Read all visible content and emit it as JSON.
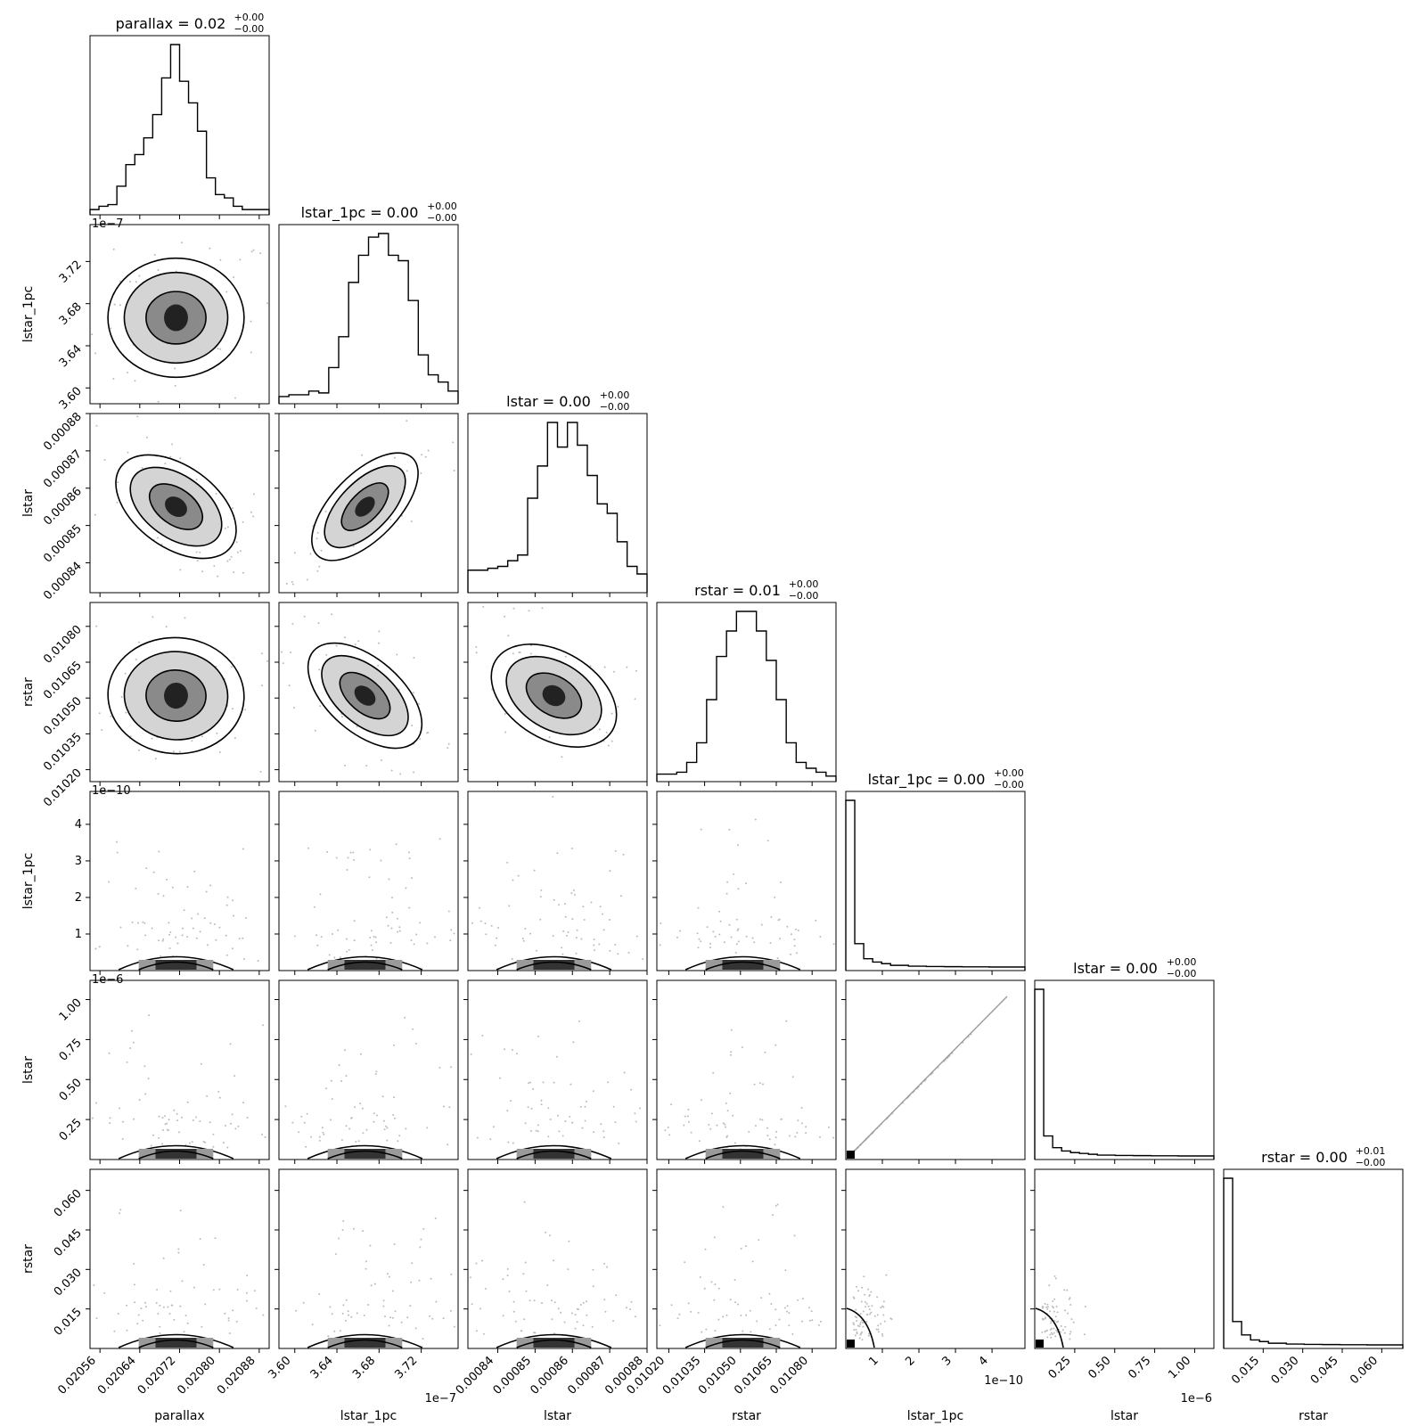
{
  "chart_data": {
    "type": "corner",
    "parameters": [
      "parallax",
      "lstar_1pc",
      "lstar",
      "rstar",
      "lstar_1pc",
      "lstar",
      "rstar"
    ],
    "titles": [
      {
        "name": "parallax",
        "value": "0.02",
        "plus": "+0.00",
        "minus": "−0.00"
      },
      {
        "name": "lstar_1pc",
        "value": "0.00",
        "plus": "+0.00",
        "minus": "−0.00"
      },
      {
        "name": "lstar",
        "value": "0.00",
        "plus": "+0.00",
        "minus": "−0.00"
      },
      {
        "name": "rstar",
        "value": "0.01",
        "plus": "+0.00",
        "minus": "−0.00"
      },
      {
        "name": "lstar_1pc",
        "value": "0.00",
        "plus": "+0.00",
        "minus": "−0.00"
      },
      {
        "name": "lstar",
        "value": "0.00",
        "plus": "+0.00",
        "minus": "−0.00"
      },
      {
        "name": "rstar",
        "value": "0.00",
        "plus": "+0.01",
        "minus": "−0.00"
      }
    ],
    "ranges": [
      [
        0.02054,
        0.0209
      ],
      [
        3.585,
        3.755
      ],
      [
        0.000832,
        0.00088
      ],
      [
        0.01015,
        0.0109
      ],
      [
        0.0,
        4.9
      ],
      [
        0.0,
        1.12
      ],
      [
        0.0,
        0.068
      ]
    ],
    "ticks": [
      [
        "0.02056",
        "0.02064",
        "0.02072",
        "0.02080",
        "0.02088"
      ],
      [
        "3.60",
        "3.64",
        "3.68",
        "3.72"
      ],
      [
        "0.00084",
        "0.00085",
        "0.00086",
        "0.00087",
        "0.00088"
      ],
      [
        "0.01020",
        "0.01035",
        "0.01050",
        "0.01065",
        "0.01080"
      ],
      [
        "1",
        "2",
        "3",
        "4"
      ],
      [
        "0.25",
        "0.50",
        "0.75",
        "1.00"
      ],
      [
        "0.015",
        "0.030",
        "0.045",
        "0.060"
      ]
    ],
    "tick_values": [
      [
        0.02056,
        0.02064,
        0.02072,
        0.0208,
        0.02088
      ],
      [
        3.6,
        3.64,
        3.68,
        3.72
      ],
      [
        0.00084,
        0.00085,
        0.00086,
        0.00087,
        0.00088
      ],
      [
        0.0102,
        0.01035,
        0.0105,
        0.01065,
        0.0108
      ],
      [
        1,
        2,
        3,
        4
      ],
      [
        0.25,
        0.5,
        0.75,
        1.0
      ],
      [
        0.015,
        0.03,
        0.045,
        0.06
      ]
    ],
    "offsets": [
      "",
      "1e−7",
      "",
      "",
      "1e−10",
      "1e−6",
      ""
    ],
    "histograms": [
      [
        1,
        3,
        4,
        15,
        28,
        34,
        44,
        58,
        80,
        100,
        78,
        65,
        48,
        20,
        10,
        8,
        3,
        1,
        1,
        1
      ],
      [
        2,
        3,
        3,
        5,
        4,
        18,
        35,
        65,
        80,
        90,
        92,
        80,
        77,
        55,
        25,
        14,
        10,
        5
      ],
      [
        10,
        10,
        11,
        12,
        15,
        18,
        48,
        65,
        88,
        75,
        88,
        76,
        60,
        45,
        40,
        25,
        12,
        8
      ],
      [
        2,
        2,
        3,
        8,
        18,
        40,
        62,
        75,
        85,
        85,
        75,
        60,
        40,
        18,
        8,
        5,
        3,
        1
      ],
      [
        100,
        14,
        5,
        3,
        2,
        1,
        1,
        0.5,
        0.5,
        0.3,
        0.3,
        0.2,
        0.2,
        0.1,
        0.1,
        0.1,
        0,
        0,
        0,
        0
      ],
      [
        100,
        12,
        5,
        3,
        2,
        1.5,
        1,
        0.5,
        0.5,
        0.3,
        0.3,
        0.2,
        0.2,
        0.1,
        0.1,
        0.1,
        0,
        0,
        0,
        0
      ],
      [
        100,
        14,
        6,
        3,
        2,
        1,
        1,
        0.5,
        0.5,
        0.3,
        0.3,
        0.2,
        0.2,
        0.1,
        0.1,
        0.1,
        0,
        0,
        0,
        0
      ]
    ],
    "correlations": {
      "1-0": 0.0,
      "2-0": -0.6,
      "3-0": -0.05,
      "2-1": 0.85,
      "3-1": -0.72,
      "3-2": -0.5
    },
    "skewed_params": [
      4,
      5,
      6
    ],
    "linear_pair": "5-4"
  }
}
